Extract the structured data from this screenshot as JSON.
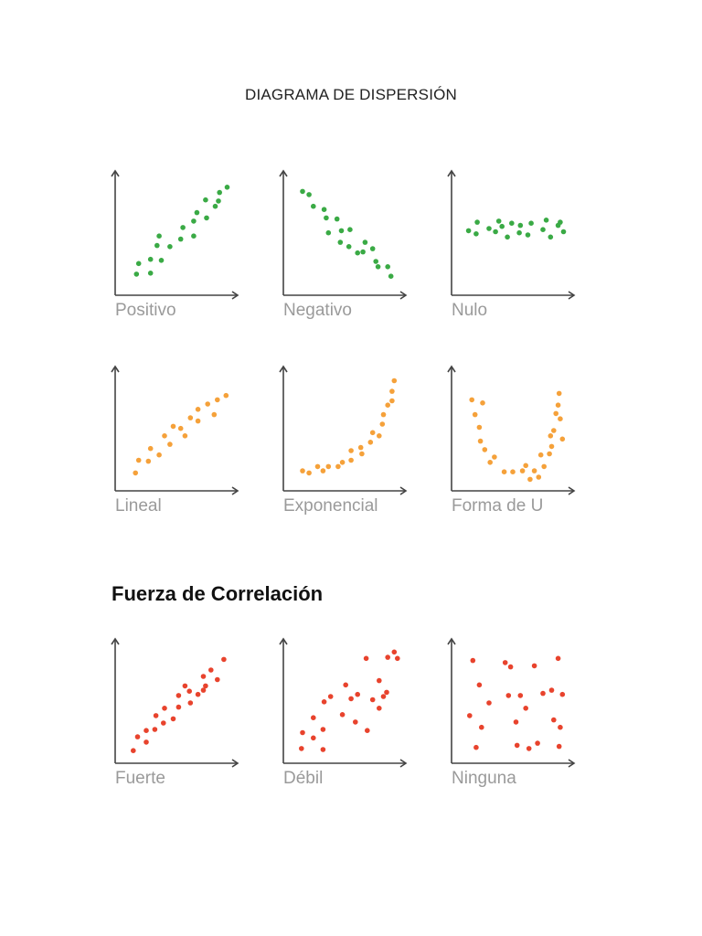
{
  "page": {
    "title": "DIAGRAMA DE DISPERSIÓN",
    "section_title": "Fuerza de Correlación"
  },
  "colors": {
    "axis": "#444444",
    "green": "#3aaa45",
    "orange": "#f5a13a",
    "red": "#e8432d",
    "label": "#9a9a9a"
  },
  "chart_data": [
    {
      "type": "scatter",
      "title": "Positivo",
      "color": "#3aaa45",
      "xlim": [
        0,
        10
      ],
      "ylim": [
        0,
        10
      ],
      "points": [
        [
          1.3,
          1.3
        ],
        [
          2.6,
          1.4
        ],
        [
          1.5,
          2.3
        ],
        [
          2.6,
          2.7
        ],
        [
          3.6,
          2.6
        ],
        [
          3.2,
          4.0
        ],
        [
          4.4,
          3.9
        ],
        [
          3.4,
          4.9
        ],
        [
          5.4,
          4.6
        ],
        [
          5.6,
          5.7
        ],
        [
          6.6,
          4.9
        ],
        [
          6.6,
          6.3
        ],
        [
          6.9,
          7.1
        ],
        [
          7.8,
          6.6
        ],
        [
          8.6,
          7.7
        ],
        [
          8.9,
          8.2
        ],
        [
          9.7,
          9.5
        ],
        [
          7.7,
          8.3
        ],
        [
          9.0,
          9.0
        ]
      ]
    },
    {
      "type": "scatter",
      "title": "Negativo",
      "color": "#3aaa45",
      "xlim": [
        0,
        10
      ],
      "ylim": [
        0,
        10
      ],
      "points": [
        [
          1.1,
          9.1
        ],
        [
          1.7,
          8.8
        ],
        [
          2.1,
          7.7
        ],
        [
          3.1,
          7.4
        ],
        [
          3.3,
          6.6
        ],
        [
          4.3,
          6.5
        ],
        [
          3.5,
          5.2
        ],
        [
          4.7,
          5.4
        ],
        [
          4.6,
          4.3
        ],
        [
          5.4,
          3.9
        ],
        [
          5.5,
          5.5
        ],
        [
          6.2,
          3.3
        ],
        [
          6.9,
          4.3
        ],
        [
          6.7,
          3.4
        ],
        [
          7.6,
          3.7
        ],
        [
          7.9,
          2.5
        ],
        [
          8.1,
          2.0
        ],
        [
          9.0,
          2.0
        ],
        [
          9.3,
          1.1
        ]
      ]
    },
    {
      "type": "scatter",
      "title": "Nulo",
      "color": "#3aaa45",
      "xlim": [
        0,
        10
      ],
      "ylim": [
        0,
        10
      ],
      "points": [
        [
          0.9,
          5.4
        ],
        [
          1.7,
          6.2
        ],
        [
          1.6,
          5.1
        ],
        [
          2.8,
          5.6
        ],
        [
          3.4,
          5.3
        ],
        [
          3.7,
          6.3
        ],
        [
          4.0,
          5.8
        ],
        [
          4.5,
          4.8
        ],
        [
          4.9,
          6.1
        ],
        [
          5.6,
          5.2
        ],
        [
          5.7,
          5.9
        ],
        [
          6.4,
          5.0
        ],
        [
          6.7,
          6.1
        ],
        [
          7.8,
          5.5
        ],
        [
          8.1,
          6.4
        ],
        [
          8.5,
          4.8
        ],
        [
          9.2,
          5.9
        ],
        [
          9.7,
          5.3
        ],
        [
          9.4,
          6.2
        ]
      ]
    },
    {
      "type": "scatter",
      "title": "Lineal",
      "color": "#f5a13a",
      "xlim": [
        0,
        10
      ],
      "ylim": [
        0,
        10
      ],
      "points": [
        [
          1.2,
          1.0
        ],
        [
          1.5,
          2.2
        ],
        [
          2.4,
          2.1
        ],
        [
          2.6,
          3.3
        ],
        [
          3.4,
          2.7
        ],
        [
          3.9,
          4.5
        ],
        [
          4.4,
          3.7
        ],
        [
          4.7,
          5.4
        ],
        [
          5.4,
          5.2
        ],
        [
          5.8,
          4.5
        ],
        [
          6.3,
          6.2
        ],
        [
          7.0,
          5.9
        ],
        [
          7.0,
          7.0
        ],
        [
          7.9,
          7.5
        ],
        [
          8.5,
          6.5
        ],
        [
          8.8,
          7.9
        ],
        [
          9.6,
          8.3
        ]
      ]
    },
    {
      "type": "scatter",
      "title": "Exponencial",
      "color": "#f5a13a",
      "xlim": [
        0,
        10
      ],
      "ylim": [
        0,
        10
      ],
      "points": [
        [
          1.1,
          1.2
        ],
        [
          1.7,
          1.0
        ],
        [
          2.5,
          1.6
        ],
        [
          3.0,
          1.2
        ],
        [
          3.5,
          1.6
        ],
        [
          4.4,
          1.6
        ],
        [
          4.8,
          2.0
        ],
        [
          5.6,
          2.2
        ],
        [
          5.6,
          3.1
        ],
        [
          6.6,
          2.8
        ],
        [
          6.5,
          3.4
        ],
        [
          7.4,
          3.9
        ],
        [
          7.6,
          4.8
        ],
        [
          8.2,
          4.5
        ],
        [
          8.5,
          5.6
        ],
        [
          8.6,
          6.5
        ],
        [
          9.0,
          7.4
        ],
        [
          9.4,
          7.8
        ],
        [
          9.4,
          8.7
        ],
        [
          9.6,
          9.7
        ]
      ]
    },
    {
      "type": "scatter",
      "title": "Forma de U",
      "color": "#f5a13a",
      "xlim": [
        0,
        10
      ],
      "ylim": [
        0,
        10
      ],
      "points": [
        [
          1.2,
          7.9
        ],
        [
          1.5,
          6.5
        ],
        [
          1.9,
          5.3
        ],
        [
          2.2,
          7.6
        ],
        [
          2.0,
          4.0
        ],
        [
          2.4,
          3.2
        ],
        [
          2.9,
          2.0
        ],
        [
          3.3,
          2.5
        ],
        [
          4.2,
          1.1
        ],
        [
          5.0,
          1.1
        ],
        [
          5.9,
          1.2
        ],
        [
          6.2,
          1.7
        ],
        [
          6.6,
          0.4
        ],
        [
          7.0,
          1.2
        ],
        [
          7.4,
          0.6
        ],
        [
          7.9,
          1.6
        ],
        [
          7.6,
          2.7
        ],
        [
          8.4,
          2.8
        ],
        [
          8.6,
          3.5
        ],
        [
          8.5,
          4.5
        ],
        [
          8.8,
          5.0
        ],
        [
          9.6,
          4.2
        ],
        [
          9.4,
          6.1
        ],
        [
          9.0,
          6.6
        ],
        [
          9.2,
          7.4
        ],
        [
          9.3,
          8.5
        ]
      ]
    },
    {
      "type": "scatter",
      "title": "Fuerte",
      "color": "#e8432d",
      "xlim": [
        0,
        10
      ],
      "ylim": [
        0,
        10
      ],
      "points": [
        [
          1.0,
          0.5
        ],
        [
          1.4,
          1.8
        ],
        [
          2.2,
          1.3
        ],
        [
          2.2,
          2.4
        ],
        [
          3.0,
          2.5
        ],
        [
          3.1,
          3.8
        ],
        [
          3.8,
          3.1
        ],
        [
          3.9,
          4.5
        ],
        [
          4.7,
          3.5
        ],
        [
          5.2,
          4.6
        ],
        [
          5.2,
          5.7
        ],
        [
          5.8,
          6.6
        ],
        [
          6.2,
          6.1
        ],
        [
          6.3,
          5.0
        ],
        [
          7.0,
          5.8
        ],
        [
          7.5,
          7.5
        ],
        [
          7.7,
          6.6
        ],
        [
          8.2,
          8.1
        ],
        [
          9.4,
          9.1
        ],
        [
          8.8,
          7.2
        ],
        [
          7.5,
          6.2
        ]
      ]
    },
    {
      "type": "scatter",
      "title": "Débil",
      "color": "#e8432d",
      "xlim": [
        0,
        10
      ],
      "ylim": [
        0,
        10
      ],
      "points": [
        [
          1.0,
          0.7
        ],
        [
          1.1,
          2.2
        ],
        [
          2.1,
          1.7
        ],
        [
          3.0,
          0.6
        ],
        [
          2.1,
          3.6
        ],
        [
          3.0,
          2.5
        ],
        [
          3.1,
          5.1
        ],
        [
          3.7,
          5.6
        ],
        [
          4.8,
          3.9
        ],
        [
          5.1,
          6.7
        ],
        [
          5.6,
          5.4
        ],
        [
          6.0,
          3.2
        ],
        [
          6.2,
          5.8
        ],
        [
          7.0,
          9.2
        ],
        [
          7.1,
          2.4
        ],
        [
          7.6,
          5.3
        ],
        [
          8.2,
          4.5
        ],
        [
          8.2,
          7.1
        ],
        [
          8.9,
          6.0
        ],
        [
          9.0,
          9.3
        ],
        [
          9.6,
          9.8
        ],
        [
          9.9,
          9.2
        ],
        [
          8.6,
          5.6
        ]
      ]
    },
    {
      "type": "scatter",
      "title": "Ninguna",
      "color": "#e8432d",
      "xlim": [
        0,
        10
      ],
      "ylim": [
        0,
        10
      ],
      "points": [
        [
          1.3,
          9.0
        ],
        [
          1.9,
          6.7
        ],
        [
          1.0,
          3.8
        ],
        [
          2.1,
          2.7
        ],
        [
          2.8,
          5.0
        ],
        [
          1.6,
          0.8
        ],
        [
          4.3,
          8.8
        ],
        [
          4.6,
          5.7
        ],
        [
          4.8,
          8.4
        ],
        [
          5.3,
          3.2
        ],
        [
          5.4,
          1.0
        ],
        [
          5.7,
          5.7
        ],
        [
          6.2,
          4.5
        ],
        [
          6.5,
          0.7
        ],
        [
          7.0,
          8.5
        ],
        [
          7.3,
          1.2
        ],
        [
          7.8,
          5.9
        ],
        [
          8.6,
          6.2
        ],
        [
          9.2,
          9.2
        ],
        [
          8.8,
          3.4
        ],
        [
          9.4,
          2.7
        ],
        [
          9.6,
          5.8
        ],
        [
          9.3,
          0.9
        ]
      ]
    }
  ]
}
